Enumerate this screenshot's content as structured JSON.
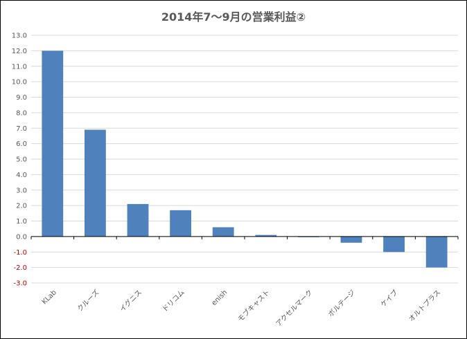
{
  "chart_data": {
    "type": "bar",
    "title": "2014年7～9月の営業利益②",
    "categories": [
      "KLab",
      "クルーズ",
      "イグニス",
      "ドリコム",
      "enish",
      "モブキャスト",
      "アクセルマーク",
      "ボルテージ",
      "ケイブ",
      "オルトプラス"
    ],
    "values": [
      12.0,
      6.9,
      2.1,
      1.7,
      0.6,
      0.1,
      0.0,
      -0.4,
      -1.0,
      -2.0
    ],
    "xlabel": "",
    "ylabel": "",
    "ylim": [
      -3.0,
      13.0
    ],
    "ytick_step": 1.0,
    "yticks": [
      "13.0",
      "12.0",
      "11.0",
      "10.0",
      "9.0",
      "8.0",
      "7.0",
      "6.0",
      "5.0",
      "4.0",
      "3.0",
      "2.0",
      "1.0",
      "0.0",
      "-1.0",
      "-2.0",
      "-3.0"
    ],
    "grid": true,
    "legend": "none",
    "colors": {
      "bar": "#4F81BD",
      "grid": "#D9D9D9",
      "tick_positive": "#595959",
      "tick_negative": "#C00000",
      "axis": "#000000"
    }
  }
}
